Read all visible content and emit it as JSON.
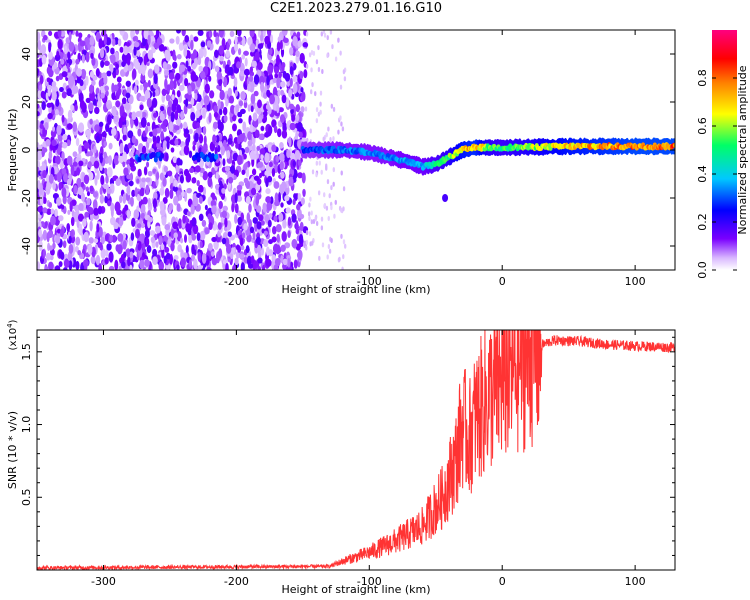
{
  "figure_title": "C2E1.2023.279.01.16.G10",
  "chart_data": [
    {
      "type": "heatmap",
      "title": "C2E1.2023.279.01.16.G10",
      "xlabel": "Height of straight line (km)",
      "ylabel": "Frequency (Hz)",
      "xlim": [
        -350,
        130
      ],
      "ylim": [
        -50,
        50
      ],
      "x_ticks": [
        -300,
        -200,
        -100,
        0,
        100
      ],
      "y_ticks": [
        -40,
        -20,
        0,
        20,
        40
      ],
      "colorbar": {
        "label": "Normalized spectral amplitude",
        "range": [
          0,
          1
        ],
        "ticks": [
          0.0,
          0.2,
          0.4,
          0.6,
          0.8
        ],
        "colors": [
          "#ffffff",
          "#d9b8ff",
          "#7a00ff",
          "#0000ff",
          "#00c8ff",
          "#00ff66",
          "#ffff00",
          "#ff8000",
          "#ff0000",
          "#ff007f"
        ]
      },
      "ridge": {
        "description_points_x": [
          -150,
          -120,
          -100,
          -85,
          -70,
          -60,
          -50,
          -40,
          -30,
          -20,
          -10,
          0,
          50,
          100,
          130
        ],
        "description_points_y": [
          0,
          0,
          -1,
          -3,
          -5,
          -7,
          -6,
          -3,
          0,
          1,
          1,
          1,
          1.5,
          1.5,
          1.5
        ],
        "amplitude": [
          0.3,
          0.35,
          0.35,
          0.35,
          0.4,
          0.4,
          0.5,
          0.6,
          0.75,
          0.8,
          0.6,
          0.55,
          0.75,
          0.85,
          0.85
        ]
      }
    },
    {
      "type": "line",
      "xlabel": "Height of straight line (km)",
      "ylabel": "SNR (10 * v/v)",
      "scale_label": "(x10",
      "scale_exponent": "4",
      "scale_close": ")",
      "xlim": [
        -350,
        130
      ],
      "ylim": [
        0,
        16500
      ],
      "x_ticks": [
        -300,
        -200,
        -100,
        0,
        100
      ],
      "y_ticks": [
        5000,
        10000,
        15000
      ],
      "y_tick_labels": [
        "0.5",
        "1.0",
        "1.5"
      ],
      "color": "#ff3333",
      "series_envelope": {
        "x": [
          -350,
          -130,
          -120,
          -100,
          -80,
          -60,
          -45,
          -35,
          -30,
          -25,
          -20,
          -10,
          0,
          10,
          20,
          30,
          40,
          60,
          80,
          100,
          130
        ],
        "y": [
          150,
          250,
          600,
          1200,
          2000,
          3000,
          5000,
          7500,
          10000,
          9000,
          10500,
          12000,
          13000,
          14000,
          15000,
          15500,
          15800,
          15700,
          15500,
          15400,
          15300
        ]
      }
    }
  ]
}
